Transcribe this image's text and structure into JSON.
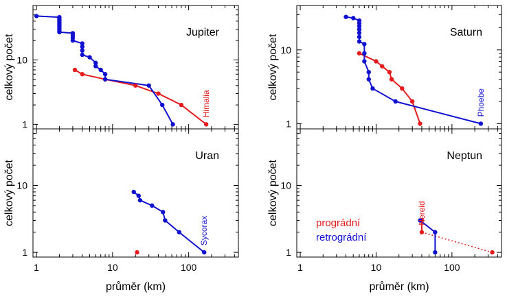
{
  "colors": {
    "prograde": "#e41a1c",
    "retrograde": "#1010d0",
    "frame": "#000000"
  },
  "chart_data": [
    {
      "type": "line",
      "title": "Jupiter",
      "xlabel": "",
      "ylabel": "celkový počet",
      "xscale": "log",
      "yscale": "log",
      "xlim": [
        0.9,
        450
      ],
      "ylim": [
        0.85,
        70
      ],
      "yticklabels": [
        "1",
        "10"
      ],
      "xticklabels": [],
      "annotation": {
        "text": "Himalia",
        "series": "prograde"
      },
      "series": [
        {
          "name": "prograde",
          "color": "#e41a1c",
          "dotted": false,
          "markers": true,
          "points": [
            [
              3.2,
              7
            ],
            [
              4,
              6
            ],
            [
              8,
              5
            ],
            [
              20,
              4
            ],
            [
              40,
              3
            ],
            [
              80,
              2
            ],
            [
              170,
              1
            ]
          ]
        },
        {
          "name": "retrograde",
          "color": "#1010d0",
          "dotted": false,
          "markers": true,
          "points": [
            [
              1,
              48
            ],
            [
              2,
              46
            ],
            [
              2,
              44
            ],
            [
              2,
              42
            ],
            [
              2,
              40
            ],
            [
              2,
              38
            ],
            [
              2,
              36
            ],
            [
              2,
              34
            ],
            [
              2,
              32
            ],
            [
              2,
              30
            ],
            [
              2,
              28
            ],
            [
              2,
              27
            ],
            [
              3,
              26
            ],
            [
              3,
              24
            ],
            [
              3,
              22
            ],
            [
              3,
              20
            ],
            [
              4,
              18
            ],
            [
              4,
              16
            ],
            [
              4,
              14
            ],
            [
              4,
              12
            ],
            [
              5,
              11
            ],
            [
              6,
              9
            ],
            [
              6,
              8
            ],
            [
              7,
              7
            ],
            [
              8,
              6
            ],
            [
              8,
              5
            ],
            [
              30,
              4
            ],
            [
              45,
              2
            ],
            [
              62,
              1
            ]
          ]
        }
      ]
    },
    {
      "type": "line",
      "title": "Saturn",
      "xlabel": "",
      "ylabel": "celkový počet",
      "xscale": "log",
      "yscale": "log",
      "xlim": [
        0.9,
        450
      ],
      "ylim": [
        0.85,
        40
      ],
      "yticklabels": [
        "1",
        "10"
      ],
      "xticklabels": [],
      "annotation": {
        "text": "Phoebe",
        "series": "retrograde"
      },
      "series": [
        {
          "name": "prograde",
          "color": "#e41a1c",
          "dotted": false,
          "markers": true,
          "points": [
            [
              6,
              9
            ],
            [
              10,
              7
            ],
            [
              12,
              6
            ],
            [
              15,
              5
            ],
            [
              16,
              4
            ],
            [
              22,
              3
            ],
            [
              30,
              2
            ],
            [
              38,
              1
            ]
          ]
        },
        {
          "name": "retrograde",
          "color": "#1010d0",
          "dotted": false,
          "markers": true,
          "points": [
            [
              4,
              28
            ],
            [
              5,
              27
            ],
            [
              6,
              25
            ],
            [
              6,
              23
            ],
            [
              6,
              21
            ],
            [
              6,
              19
            ],
            [
              6,
              17
            ],
            [
              6,
              15
            ],
            [
              6,
              13
            ],
            [
              7,
              12
            ],
            [
              7,
              9
            ],
            [
              7,
              7
            ],
            [
              8,
              5
            ],
            [
              8,
              4
            ],
            [
              9,
              3
            ],
            [
              18,
              2
            ],
            [
              240,
              1
            ]
          ]
        }
      ]
    },
    {
      "type": "line",
      "title": "Uran",
      "xlabel": "průměr (km)",
      "ylabel": "celkový počet",
      "xscale": "log",
      "yscale": "log",
      "xlim": [
        0.9,
        450
      ],
      "ylim": [
        0.85,
        70
      ],
      "yticklabels": [
        "1",
        "10"
      ],
      "xticklabels": [
        "1",
        "10",
        "100"
      ],
      "annotation": {
        "text": "Sycorax",
        "series": "retrograde"
      },
      "series": [
        {
          "name": "prograde",
          "color": "#e41a1c",
          "dotted": false,
          "markers": true,
          "points": [
            [
              21,
              1
            ]
          ]
        },
        {
          "name": "retrograde",
          "color": "#1010d0",
          "dotted": false,
          "markers": true,
          "points": [
            [
              19,
              8
            ],
            [
              22,
              7
            ],
            [
              23,
              6
            ],
            [
              33,
              5
            ],
            [
              46,
              4
            ],
            [
              49,
              3
            ],
            [
              75,
              2
            ],
            [
              160,
              1
            ]
          ]
        }
      ]
    },
    {
      "type": "line",
      "title": "Neptun",
      "xlabel": "průměr (km)",
      "ylabel": "celkový počet",
      "xscale": "log",
      "yscale": "log",
      "xlim": [
        0.9,
        450
      ],
      "ylim": [
        0.85,
        70
      ],
      "yticklabels": [
        "1",
        "10"
      ],
      "xticklabels": [
        "1",
        "10",
        "100"
      ],
      "annotation": {
        "text": "Nereid",
        "series": "prograde"
      },
      "legend": {
        "placement": "bottom-left",
        "entries": [
          "prográdní",
          "retrográdní"
        ]
      },
      "series": [
        {
          "name": "prograde",
          "color": "#e41a1c",
          "dotted": false,
          "markers": true,
          "points": [
            [
              40,
              3
            ],
            [
              40,
              2
            ]
          ]
        },
        {
          "name": "prograde-nereid-link",
          "color": "#e41a1c",
          "dotted": true,
          "markers": false,
          "points": [
            [
              40,
              2
            ],
            [
              340,
              1
            ]
          ]
        },
        {
          "name": "prograde-nereid",
          "color": "#e41a1c",
          "dotted": false,
          "markers": true,
          "points": [
            [
              340,
              1
            ]
          ]
        },
        {
          "name": "retrograde",
          "color": "#1010d0",
          "dotted": false,
          "markers": true,
          "points": [
            [
              38,
              3
            ],
            [
              60,
              2
            ],
            [
              60,
              1
            ]
          ]
        }
      ]
    }
  ]
}
